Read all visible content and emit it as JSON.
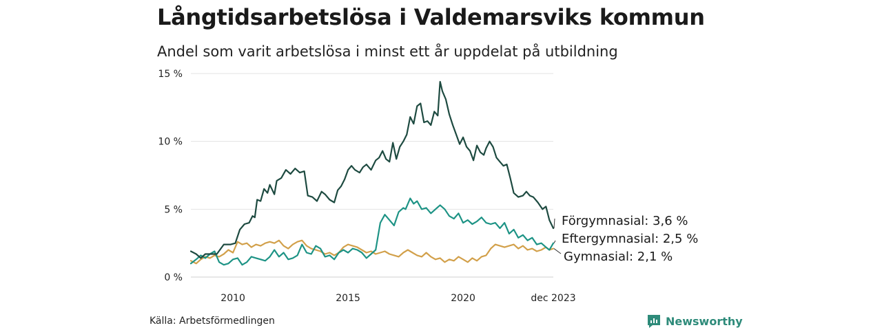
{
  "title": "Långtidsarbetslösa i Valdemarsviks kommun",
  "subtitle": "Andel som varit arbetslösa i minst ett år uppdelat på utbildning",
  "source": "Källa: Arbetsförmedlingen",
  "brand": {
    "name": "Newsworthy",
    "icon": "newsworthy-logo-icon",
    "color": "#2e8b7a"
  },
  "chart_data": {
    "type": "line",
    "title": "Långtidsarbetslösa i Valdemarsviks kommun",
    "subtitle": "Andel som varit arbetslösa i minst ett år uppdelat på utbildning",
    "xlabel": "",
    "ylabel": "",
    "x_start": 2008.17,
    "x_end": 2023.92,
    "ylim": [
      0,
      15
    ],
    "grid": true,
    "y_ticks": [
      {
        "value": 0,
        "label": "0 %"
      },
      {
        "value": 5,
        "label": "5 %"
      },
      {
        "value": 10,
        "label": "10 %"
      },
      {
        "value": 15,
        "label": "15 %"
      }
    ],
    "x_ticks": [
      {
        "value": 2010,
        "label": "2010"
      },
      {
        "value": 2015,
        "label": "2015"
      },
      {
        "value": 2020,
        "label": "2020"
      },
      {
        "value": 2023.92,
        "label": "dec 2023"
      }
    ],
    "series": [
      {
        "name": "Förgymnasial",
        "end_label": "Förgymnasial: 3,6 %",
        "color": "#1d4a40",
        "points": [
          [
            2008.17,
            1.9
          ],
          [
            2008.4,
            1.7
          ],
          [
            2008.6,
            1.4
          ],
          [
            2008.8,
            1.7
          ],
          [
            2009.0,
            1.7
          ],
          [
            2009.3,
            1.7
          ],
          [
            2009.6,
            2.4
          ],
          [
            2009.9,
            2.4
          ],
          [
            2010.1,
            2.5
          ],
          [
            2010.3,
            3.5
          ],
          [
            2010.5,
            3.9
          ],
          [
            2010.7,
            4.0
          ],
          [
            2010.85,
            4.5
          ],
          [
            2010.95,
            4.4
          ],
          [
            2011.05,
            5.7
          ],
          [
            2011.2,
            5.6
          ],
          [
            2011.35,
            6.5
          ],
          [
            2011.5,
            6.2
          ],
          [
            2011.6,
            6.8
          ],
          [
            2011.8,
            6.1
          ],
          [
            2011.9,
            7.1
          ],
          [
            2012.1,
            7.3
          ],
          [
            2012.3,
            7.9
          ],
          [
            2012.5,
            7.6
          ],
          [
            2012.7,
            8.0
          ],
          [
            2012.9,
            7.7
          ],
          [
            2013.1,
            7.8
          ],
          [
            2013.25,
            6.0
          ],
          [
            2013.45,
            5.9
          ],
          [
            2013.65,
            5.6
          ],
          [
            2013.85,
            6.3
          ],
          [
            2014.0,
            6.1
          ],
          [
            2014.2,
            5.7
          ],
          [
            2014.4,
            5.5
          ],
          [
            2014.55,
            6.4
          ],
          [
            2014.7,
            6.7
          ],
          [
            2014.85,
            7.2
          ],
          [
            2015.0,
            7.9
          ],
          [
            2015.15,
            8.2
          ],
          [
            2015.3,
            7.9
          ],
          [
            2015.5,
            7.7
          ],
          [
            2015.65,
            8.1
          ],
          [
            2015.8,
            8.3
          ],
          [
            2016.0,
            7.9
          ],
          [
            2016.2,
            8.6
          ],
          [
            2016.35,
            8.8
          ],
          [
            2016.5,
            9.3
          ],
          [
            2016.65,
            8.7
          ],
          [
            2016.8,
            8.5
          ],
          [
            2016.95,
            9.9
          ],
          [
            2017.1,
            8.7
          ],
          [
            2017.25,
            9.6
          ],
          [
            2017.4,
            10.0
          ],
          [
            2017.55,
            10.5
          ],
          [
            2017.7,
            11.8
          ],
          [
            2017.85,
            11.3
          ],
          [
            2018.0,
            12.6
          ],
          [
            2018.15,
            12.8
          ],
          [
            2018.3,
            11.4
          ],
          [
            2018.45,
            11.5
          ],
          [
            2018.6,
            11.2
          ],
          [
            2018.75,
            12.2
          ],
          [
            2018.9,
            11.9
          ],
          [
            2019.0,
            14.4
          ],
          [
            2019.1,
            13.7
          ],
          [
            2019.25,
            13.1
          ],
          [
            2019.4,
            12.0
          ],
          [
            2019.55,
            11.2
          ],
          [
            2019.7,
            10.5
          ],
          [
            2019.85,
            9.8
          ],
          [
            2020.0,
            10.3
          ],
          [
            2020.15,
            9.6
          ],
          [
            2020.3,
            9.3
          ],
          [
            2020.45,
            8.6
          ],
          [
            2020.6,
            9.7
          ],
          [
            2020.75,
            9.2
          ],
          [
            2020.9,
            9.0
          ],
          [
            2021.0,
            9.5
          ],
          [
            2021.15,
            10.0
          ],
          [
            2021.3,
            9.6
          ],
          [
            2021.45,
            8.8
          ],
          [
            2021.6,
            8.5
          ],
          [
            2021.75,
            8.2
          ],
          [
            2021.9,
            8.3
          ],
          [
            2022.05,
            7.3
          ],
          [
            2022.2,
            6.2
          ],
          [
            2022.4,
            5.9
          ],
          [
            2022.6,
            6.0
          ],
          [
            2022.75,
            6.3
          ],
          [
            2022.9,
            6.0
          ],
          [
            2023.05,
            5.9
          ],
          [
            2023.25,
            5.5
          ],
          [
            2023.45,
            5.0
          ],
          [
            2023.6,
            5.2
          ],
          [
            2023.75,
            4.2
          ],
          [
            2023.92,
            3.6
          ]
        ]
      },
      {
        "name": "Eftergymnasial",
        "end_label": "Eftergymnasial: 2,5 %",
        "color": "#1d9385",
        "points": [
          [
            2008.17,
            1.0
          ],
          [
            2008.4,
            1.3
          ],
          [
            2008.6,
            1.6
          ],
          [
            2008.8,
            1.4
          ],
          [
            2009.0,
            1.7
          ],
          [
            2009.2,
            1.9
          ],
          [
            2009.4,
            1.1
          ],
          [
            2009.6,
            0.9
          ],
          [
            2009.8,
            1.0
          ],
          [
            2010.0,
            1.3
          ],
          [
            2010.2,
            1.4
          ],
          [
            2010.4,
            0.9
          ],
          [
            2010.6,
            1.1
          ],
          [
            2010.8,
            1.5
          ],
          [
            2011.0,
            1.4
          ],
          [
            2011.2,
            1.3
          ],
          [
            2011.4,
            1.2
          ],
          [
            2011.6,
            1.5
          ],
          [
            2011.8,
            2.0
          ],
          [
            2012.0,
            1.5
          ],
          [
            2012.2,
            1.8
          ],
          [
            2012.4,
            1.3
          ],
          [
            2012.6,
            1.4
          ],
          [
            2012.8,
            1.6
          ],
          [
            2013.0,
            2.4
          ],
          [
            2013.2,
            1.8
          ],
          [
            2013.4,
            1.7
          ],
          [
            2013.6,
            2.3
          ],
          [
            2013.8,
            2.1
          ],
          [
            2014.0,
            1.5
          ],
          [
            2014.2,
            1.6
          ],
          [
            2014.4,
            1.3
          ],
          [
            2014.6,
            1.8
          ],
          [
            2014.8,
            2.0
          ],
          [
            2015.0,
            1.8
          ],
          [
            2015.2,
            2.1
          ],
          [
            2015.4,
            2.0
          ],
          [
            2015.6,
            1.8
          ],
          [
            2015.8,
            1.4
          ],
          [
            2016.0,
            1.7
          ],
          [
            2016.2,
            2.0
          ],
          [
            2016.4,
            4.0
          ],
          [
            2016.6,
            4.6
          ],
          [
            2016.8,
            4.2
          ],
          [
            2017.0,
            3.8
          ],
          [
            2017.2,
            4.8
          ],
          [
            2017.4,
            5.1
          ],
          [
            2017.5,
            5.0
          ],
          [
            2017.7,
            5.8
          ],
          [
            2017.85,
            5.4
          ],
          [
            2018.0,
            5.6
          ],
          [
            2018.2,
            5.0
          ],
          [
            2018.4,
            5.1
          ],
          [
            2018.6,
            4.7
          ],
          [
            2018.8,
            5.0
          ],
          [
            2019.0,
            5.3
          ],
          [
            2019.2,
            5.0
          ],
          [
            2019.4,
            4.5
          ],
          [
            2019.6,
            4.3
          ],
          [
            2019.8,
            4.7
          ],
          [
            2020.0,
            4.0
          ],
          [
            2020.2,
            4.2
          ],
          [
            2020.4,
            3.9
          ],
          [
            2020.6,
            4.1
          ],
          [
            2020.8,
            4.4
          ],
          [
            2021.0,
            4.0
          ],
          [
            2021.2,
            3.9
          ],
          [
            2021.4,
            4.0
          ],
          [
            2021.6,
            3.6
          ],
          [
            2021.8,
            4.0
          ],
          [
            2022.0,
            3.2
          ],
          [
            2022.2,
            3.5
          ],
          [
            2022.4,
            2.9
          ],
          [
            2022.6,
            3.1
          ],
          [
            2022.8,
            2.7
          ],
          [
            2023.0,
            2.9
          ],
          [
            2023.2,
            2.4
          ],
          [
            2023.4,
            2.5
          ],
          [
            2023.6,
            2.2
          ],
          [
            2023.75,
            2.0
          ],
          [
            2023.92,
            2.5
          ]
        ]
      },
      {
        "name": "Gymnasial",
        "end_label": "Gymnasial: 2,1 %",
        "color": "#d2a04a",
        "points": [
          [
            2008.17,
            1.2
          ],
          [
            2008.4,
            1.0
          ],
          [
            2008.6,
            1.3
          ],
          [
            2008.8,
            1.5
          ],
          [
            2009.0,
            1.4
          ],
          [
            2009.2,
            1.6
          ],
          [
            2009.4,
            1.5
          ],
          [
            2009.6,
            1.7
          ],
          [
            2009.8,
            2.0
          ],
          [
            2010.0,
            1.8
          ],
          [
            2010.2,
            2.6
          ],
          [
            2010.4,
            2.4
          ],
          [
            2010.6,
            2.5
          ],
          [
            2010.8,
            2.2
          ],
          [
            2011.0,
            2.4
          ],
          [
            2011.2,
            2.3
          ],
          [
            2011.4,
            2.5
          ],
          [
            2011.6,
            2.6
          ],
          [
            2011.8,
            2.5
          ],
          [
            2012.0,
            2.7
          ],
          [
            2012.2,
            2.3
          ],
          [
            2012.4,
            2.1
          ],
          [
            2012.6,
            2.4
          ],
          [
            2012.8,
            2.6
          ],
          [
            2013.0,
            2.7
          ],
          [
            2013.2,
            2.3
          ],
          [
            2013.4,
            2.1
          ],
          [
            2013.6,
            2.0
          ],
          [
            2013.8,
            1.9
          ],
          [
            2014.0,
            1.7
          ],
          [
            2014.2,
            1.8
          ],
          [
            2014.4,
            1.6
          ],
          [
            2014.6,
            1.8
          ],
          [
            2014.8,
            2.2
          ],
          [
            2015.0,
            2.4
          ],
          [
            2015.2,
            2.3
          ],
          [
            2015.4,
            2.2
          ],
          [
            2015.6,
            2.0
          ],
          [
            2015.8,
            1.8
          ],
          [
            2016.0,
            1.9
          ],
          [
            2016.2,
            1.7
          ],
          [
            2016.4,
            1.8
          ],
          [
            2016.6,
            1.9
          ],
          [
            2016.8,
            1.7
          ],
          [
            2017.0,
            1.6
          ],
          [
            2017.2,
            1.5
          ],
          [
            2017.4,
            1.8
          ],
          [
            2017.6,
            2.0
          ],
          [
            2017.8,
            1.8
          ],
          [
            2018.0,
            1.6
          ],
          [
            2018.2,
            1.5
          ],
          [
            2018.4,
            1.8
          ],
          [
            2018.6,
            1.5
          ],
          [
            2018.8,
            1.3
          ],
          [
            2019.0,
            1.4
          ],
          [
            2019.2,
            1.1
          ],
          [
            2019.4,
            1.3
          ],
          [
            2019.6,
            1.2
          ],
          [
            2019.8,
            1.5
          ],
          [
            2020.0,
            1.3
          ],
          [
            2020.2,
            1.1
          ],
          [
            2020.4,
            1.4
          ],
          [
            2020.6,
            1.2
          ],
          [
            2020.8,
            1.5
          ],
          [
            2021.0,
            1.6
          ],
          [
            2021.2,
            2.1
          ],
          [
            2021.4,
            2.4
          ],
          [
            2021.6,
            2.3
          ],
          [
            2021.8,
            2.2
          ],
          [
            2022.0,
            2.3
          ],
          [
            2022.2,
            2.4
          ],
          [
            2022.4,
            2.1
          ],
          [
            2022.6,
            2.3
          ],
          [
            2022.8,
            2.0
          ],
          [
            2023.0,
            2.1
          ],
          [
            2023.2,
            1.9
          ],
          [
            2023.4,
            2.0
          ],
          [
            2023.6,
            2.2
          ],
          [
            2023.75,
            2.0
          ],
          [
            2023.92,
            2.1
          ]
        ]
      }
    ]
  }
}
